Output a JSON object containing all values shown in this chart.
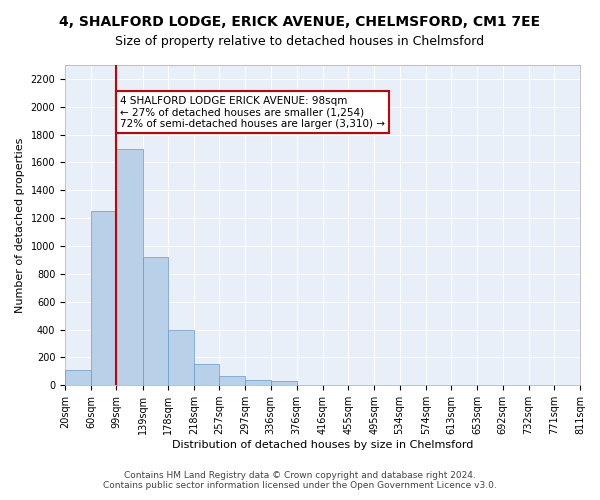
{
  "title_line1": "4, SHALFORD LODGE, ERICK AVENUE, CHELMSFORD, CM1 7EE",
  "title_line2": "Size of property relative to detached houses in Chelmsford",
  "xlabel": "Distribution of detached houses by size in Chelmsford",
  "ylabel": "Number of detached properties",
  "bar_color": "#b8d0e8",
  "bar_edge_color": "#6699cc",
  "background_color": "#e8eff8",
  "grid_color": "#ffffff",
  "annotation_box_color": "#cc0000",
  "property_line_color": "#cc0000",
  "bin_edges": [
    20,
    60,
    99,
    139,
    178,
    218,
    257,
    297,
    336,
    376,
    416,
    455,
    495,
    534,
    574,
    613,
    653,
    692,
    732,
    771,
    811
  ],
  "bin_labels": [
    "20sqm",
    "60sqm",
    "99sqm",
    "139sqm",
    "178sqm",
    "218sqm",
    "257sqm",
    "297sqm",
    "336sqm",
    "376sqm",
    "416sqm",
    "455sqm",
    "495sqm",
    "534sqm",
    "574sqm",
    "613sqm",
    "653sqm",
    "692sqm",
    "732sqm",
    "771sqm",
    "811sqm"
  ],
  "counts": [
    110,
    1254,
    1700,
    920,
    400,
    150,
    65,
    38,
    28,
    0,
    0,
    0,
    0,
    0,
    0,
    0,
    0,
    0,
    0,
    0
  ],
  "ylim": [
    0,
    2300
  ],
  "yticks": [
    0,
    200,
    400,
    600,
    800,
    1000,
    1200,
    1400,
    1600,
    1800,
    2000,
    2200
  ],
  "annotation_text_line1": "4 SHALFORD LODGE ERICK AVENUE: 98sqm",
  "annotation_text_line2": "← 27% of detached houses are smaller (1,254)",
  "annotation_text_line3": "72% of semi-detached houses are larger (3,310) →",
  "footer_line1": "Contains HM Land Registry data © Crown copyright and database right 2024.",
  "footer_line2": "Contains public sector information licensed under the Open Government Licence v3.0.",
  "title_fontsize": 10,
  "subtitle_fontsize": 9,
  "axis_label_fontsize": 8,
  "tick_fontsize": 7,
  "annotation_fontsize": 7.5,
  "footer_fontsize": 6.5,
  "ylabel_fontsize": 8
}
